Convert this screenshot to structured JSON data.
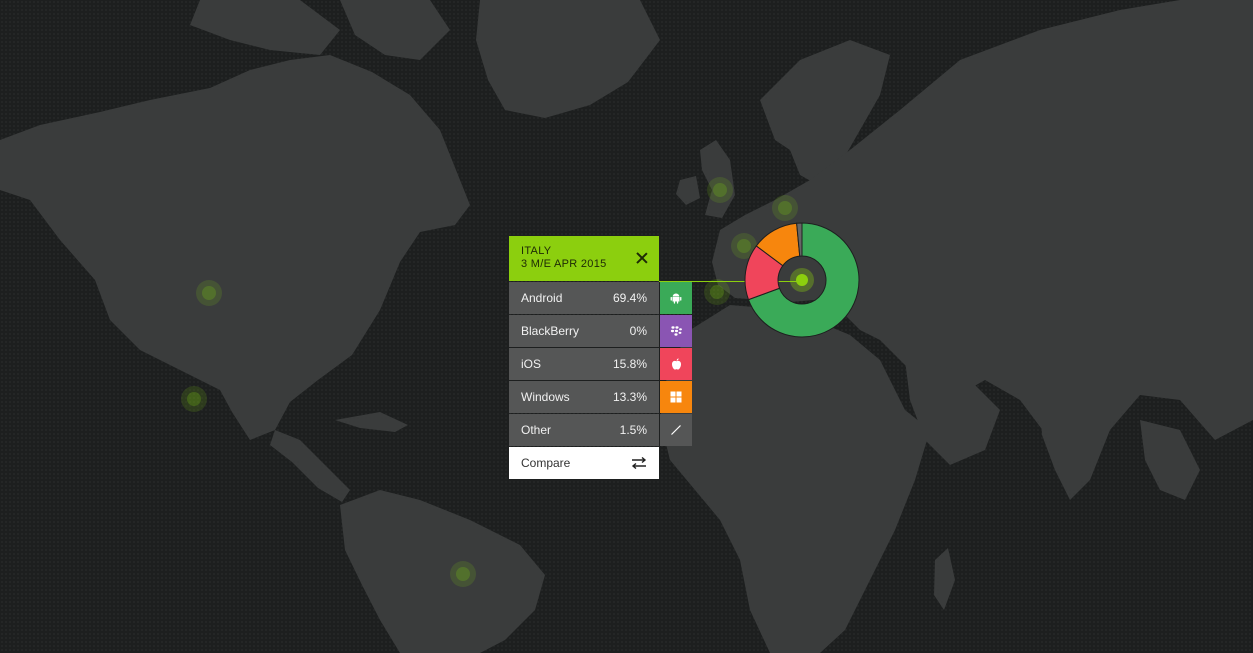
{
  "panel": {
    "country": "ITALY",
    "period": "3 M/E APR 2015",
    "rows": [
      {
        "name": "Android",
        "share": "69.4%",
        "icon": "android-icon",
        "color": "#3aaa58"
      },
      {
        "name": "BlackBerry",
        "share": "0%",
        "icon": "blackberry-icon",
        "color": "#8a55b3"
      },
      {
        "name": "iOS",
        "share": "15.8%",
        "icon": "apple-icon",
        "color": "#f0455b"
      },
      {
        "name": "Windows",
        "share": "13.3%",
        "icon": "windows-icon",
        "color": "#f7860d"
      },
      {
        "name": "Other",
        "share": "1.5%",
        "icon": "other-slash-icon",
        "color": "#555656"
      }
    ],
    "compare_label": "Compare"
  },
  "donut": {
    "values": [
      69.4,
      0,
      15.8,
      13.3,
      1.5
    ],
    "colors": [
      "#3aaa58",
      "#8a55b3",
      "#f0455b",
      "#f7860d",
      "#666666"
    ]
  },
  "colors": {
    "accent": "#8ccf0e",
    "background": "#1d1f1f",
    "land": "#3a3c3c"
  }
}
